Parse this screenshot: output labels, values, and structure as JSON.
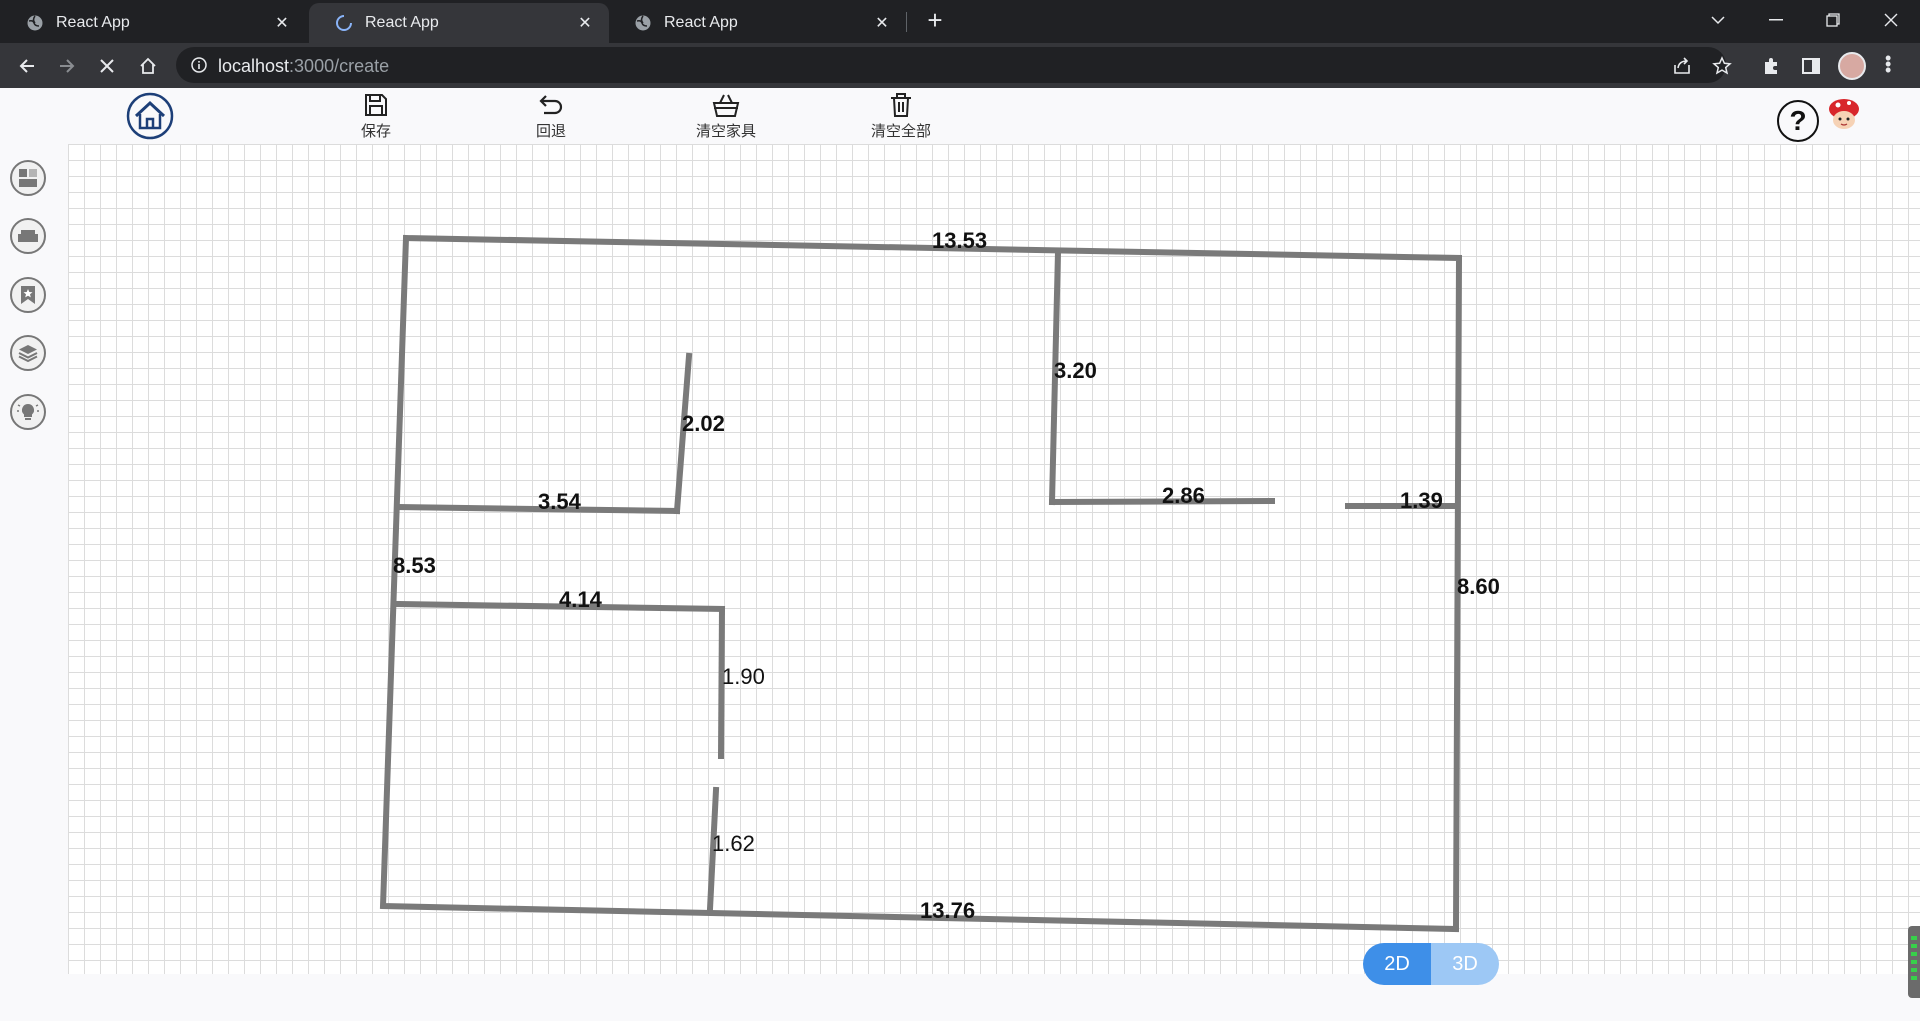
{
  "browser": {
    "tabs": [
      {
        "title": "React App",
        "close": "✕",
        "loading": false
      },
      {
        "title": "React App",
        "close": "✕",
        "loading": true
      },
      {
        "title": "React App",
        "close": "✕",
        "loading": false
      }
    ],
    "new_tab": "+",
    "url_host": "localhost",
    "url_path": ":3000/create"
  },
  "toolbar": {
    "save_label": "保存",
    "undo_label": "回退",
    "clear_furniture_label": "清空家具",
    "clear_all_label": "清空全部"
  },
  "help": {
    "label": "?"
  },
  "sidebar": {
    "items": [
      {
        "icon": "room-layout-icon"
      },
      {
        "icon": "sofa-icon"
      },
      {
        "icon": "bookmark-star-icon"
      },
      {
        "icon": "layers-icon"
      },
      {
        "icon": "lightbulb-icon"
      }
    ]
  },
  "plan": {
    "dimensions": {
      "top": "13.53",
      "bottom": "13.76",
      "left": "8.53",
      "right": "8.60",
      "inner_upper_right_vertical": "3.20",
      "inner_upper_left_vertical": "2.02",
      "upper_left_horizontal": "3.54",
      "upper_right_horizontal": "2.86",
      "right_stub_horizontal": "1.39",
      "middle_left_horizontal": "4.14",
      "lower_vertical_upper": "1.90",
      "lower_vertical_lower": "1.62"
    }
  },
  "view_toggle": {
    "option_2d": "2D",
    "option_3d": "3D",
    "selected": "2D"
  }
}
